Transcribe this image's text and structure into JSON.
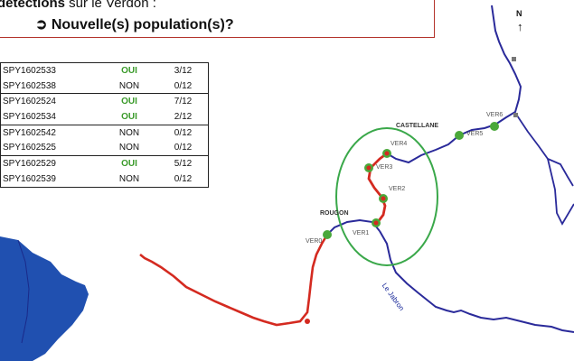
{
  "header": {
    "line1_bold": "détections",
    "line1_rest": " sur le Verdon :",
    "line2": "➲ Nouvelle(s) population(s)?"
  },
  "results": [
    {
      "sample": "SPY1602533",
      "detected": "OUI",
      "count": "3/12"
    },
    {
      "sample": "SPY1602538",
      "detected": "NON",
      "count": "0/12"
    },
    {
      "sample": "SPY1602524",
      "detected": "OUI",
      "count": "7/12"
    },
    {
      "sample": "SPY1602534",
      "detected": "OUI",
      "count": "2/12"
    },
    {
      "sample": "SPY1602542",
      "detected": "NON",
      "count": "0/12"
    },
    {
      "sample": "SPY1602525",
      "detected": "NON",
      "count": "0/12"
    },
    {
      "sample": "SPY1602529",
      "detected": "OUI",
      "count": "5/12"
    },
    {
      "sample": "SPY1602539",
      "detected": "NON",
      "count": "0/12"
    }
  ],
  "map": {
    "north": "N",
    "north_arrow": "↑",
    "towns": {
      "castellane": "CASTELLANE",
      "rougon": "ROUGON"
    },
    "river": "Le Jabron",
    "stations": {
      "ver0": "VER0",
      "ver1": "VER1",
      "ver2": "VER2",
      "ver3": "VER3",
      "ver4": "VER4",
      "ver5": "VER5",
      "ver6": "VER6"
    }
  },
  "colors": {
    "positive_text": "#3a9a2a",
    "positive_reach": "#d42a20",
    "negative_reach": "#2a2a9a",
    "station_marker": "#4aa83a",
    "zone_circle": "#3aa84a",
    "lake": "#2050b0",
    "callout_border": "#b4342c"
  }
}
